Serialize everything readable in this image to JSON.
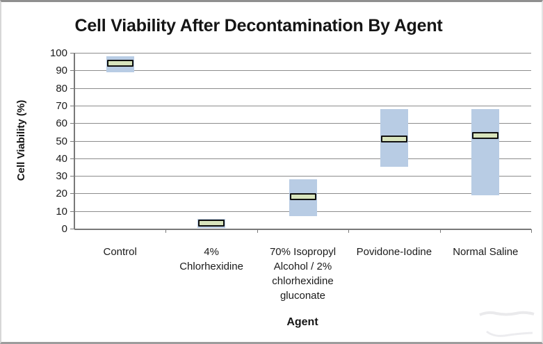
{
  "chart_data": {
    "type": "bar",
    "subtype": "floating-range-bars-with-median-markers",
    "title": "Cell Viability After Decontamination By Agent",
    "xlabel": "Agent",
    "ylabel": "Cell Viability (%)",
    "ylim": [
      0,
      100
    ],
    "ytick_step": 10,
    "ytick_labels": [
      "0",
      "10",
      "20",
      "30",
      "40",
      "50",
      "60",
      "70",
      "80",
      "90",
      "100"
    ],
    "grid": true,
    "legend_position": "none",
    "categories": [
      "Control",
      "4% Chlorhexidine",
      "70% Isopropyl Alcohol / 2% chlorhexidine gluconate",
      "Povidone-Iodine",
      "Normal Saline"
    ],
    "category_label_lines": [
      [
        "Control"
      ],
      [
        "4%",
        "Chlorhexidine"
      ],
      [
        "70% Isopropyl",
        "Alcohol / 2%",
        "chlorhexidine",
        "gluconate"
      ],
      [
        "Povidone-Iodine"
      ],
      [
        "Normal Saline"
      ]
    ],
    "series": [
      {
        "name": "range_low",
        "values": [
          89,
          0.5,
          7,
          35,
          19
        ]
      },
      {
        "name": "range_high",
        "values": [
          98,
          5.5,
          28,
          68,
          68
        ]
      },
      {
        "name": "median",
        "values": [
          94,
          3,
          18,
          51,
          53
        ]
      }
    ],
    "colors": {
      "range_fill": "#b8cce4",
      "median_fill": "#d8e4bc",
      "median_border": "#111111",
      "gridline": "#8c8c8c",
      "axis": "#787878",
      "text": "#1a1a1a"
    }
  }
}
